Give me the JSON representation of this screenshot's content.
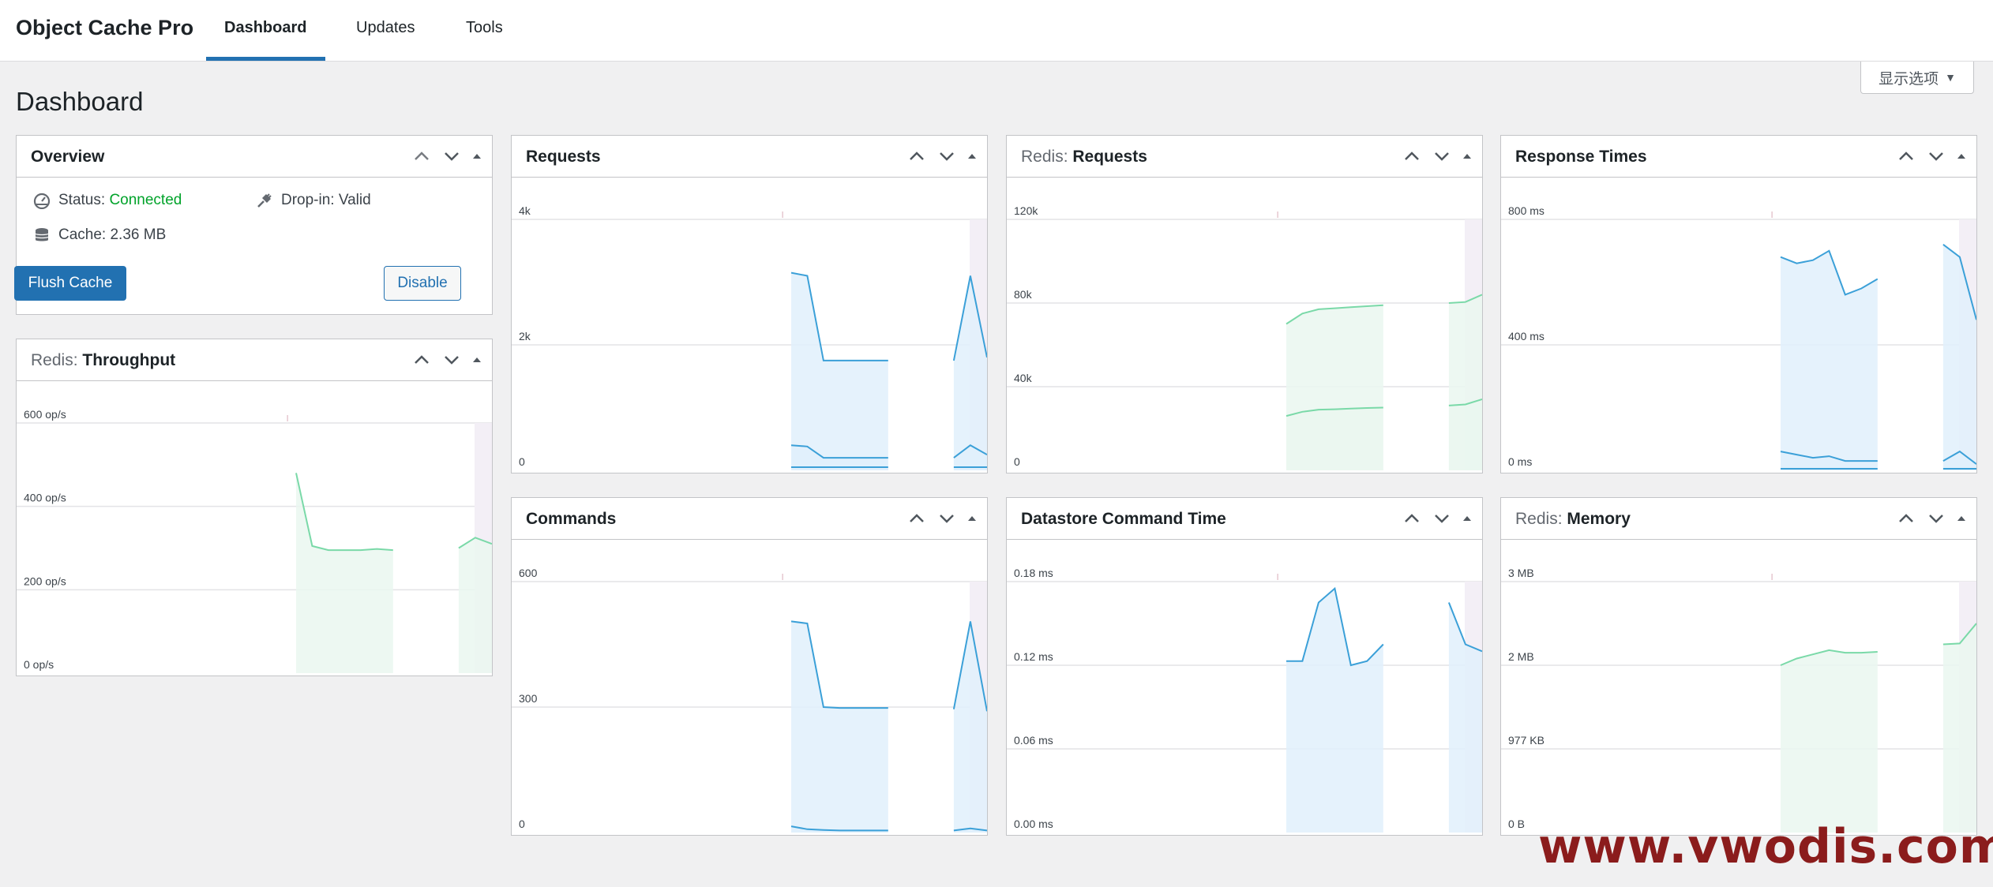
{
  "app": {
    "brand": "Object Cache Pro",
    "tabs": [
      {
        "label": "Dashboard",
        "active": true
      },
      {
        "label": "Updates",
        "active": false
      },
      {
        "label": "Tools",
        "active": false
      }
    ],
    "screen_options_label": "显示选项",
    "page_title": "Dashboard"
  },
  "overview": {
    "title": "Overview",
    "status_label": "Status:",
    "status_value": "Connected",
    "dropin_label": "Drop-in: Valid",
    "cache_label": "Cache: 2.36 MB",
    "flush_label": "Flush Cache",
    "disable_label": "Disable"
  },
  "colors": {
    "accent": "#2271b1",
    "connected": "#00a32a",
    "blue_line": "#3ba0d8",
    "blue_fill": "#e0f0fb",
    "green_line": "#7ad9a8",
    "green_fill": "#eaf7f0",
    "watermark": "#8b1c1c"
  },
  "icons": [
    "dashboard-icon",
    "plug-icon",
    "database-icon",
    "chevron-up-icon",
    "chevron-down-icon",
    "triangle-up-icon"
  ],
  "panels": [
    {
      "id": "throughput",
      "prefix": "Redis:",
      "title": "Throughput"
    },
    {
      "id": "requests",
      "prefix": "",
      "title": "Requests"
    },
    {
      "id": "redis_requests",
      "prefix": "Redis:",
      "title": "Requests"
    },
    {
      "id": "response_times",
      "prefix": "",
      "title": "Response Times"
    },
    {
      "id": "commands",
      "prefix": "",
      "title": "Commands"
    },
    {
      "id": "datastore_time",
      "prefix": "",
      "title": "Datastore Command Time"
    },
    {
      "id": "redis_memory",
      "prefix": "Redis:",
      "title": "Memory"
    }
  ],
  "watermark": "www.vwodis.com",
  "chart_data": [
    {
      "id": "throughput",
      "type": "area",
      "title": "Redis: Throughput",
      "y_ticks": [
        "600 op/s",
        "400 op/s",
        "200 op/s",
        "0 op/s"
      ],
      "ylim": [
        0,
        600
      ],
      "series": [
        {
          "color": "green",
          "segments": [
            [
              480,
              305,
              295,
              295,
              295,
              298,
              295
            ],
            [
              300,
              325,
              310
            ]
          ]
        }
      ]
    },
    {
      "id": "requests",
      "type": "area",
      "title": "Requests",
      "y_ticks": [
        "4k",
        "2k",
        "0"
      ],
      "ylim": [
        0,
        4000
      ],
      "series": [
        {
          "color": "blue",
          "segments": [
            [
              3150,
              3100,
              1750,
              1750,
              1750,
              1750,
              1750
            ],
            [
              1750,
              3100,
              1800
            ]
          ]
        },
        {
          "color": "blue",
          "segments": [
            [
              400,
              380,
              200,
              200,
              200,
              200,
              200
            ],
            [
              200,
              400,
              250
            ]
          ]
        },
        {
          "color": "blue",
          "segments": [
            [
              50,
              50,
              50,
              50,
              50,
              50,
              50
            ],
            [
              50,
              50,
              50
            ]
          ]
        }
      ]
    },
    {
      "id": "redis_requests",
      "type": "area",
      "title": "Redis: Requests",
      "y_ticks": [
        "120k",
        "80k",
        "40k",
        "0"
      ],
      "ylim": [
        0,
        120000
      ],
      "series": [
        {
          "color": "green",
          "segments": [
            [
              70000,
              75000,
              77000,
              77500,
              78000,
              78500,
              79000
            ],
            [
              80000,
              80500,
              84000
            ]
          ]
        },
        {
          "color": "green",
          "segments": [
            [
              26000,
              28000,
              29000,
              29200,
              29500,
              29800,
              30000
            ],
            [
              31000,
              31500,
              34000
            ]
          ]
        }
      ]
    },
    {
      "id": "response_times",
      "type": "area",
      "title": "Response Times",
      "y_ticks": [
        "800 ms",
        "400 ms",
        "0 ms"
      ],
      "ylim": [
        0,
        800
      ],
      "series": [
        {
          "color": "blue",
          "segments": [
            [
              680,
              660,
              670,
              700,
              560,
              580,
              610
            ],
            [
              720,
              680,
              480
            ]
          ]
        },
        {
          "color": "blue",
          "segments": [
            [
              60,
              50,
              40,
              45,
              30,
              30,
              30
            ],
            [
              30,
              60,
              20
            ]
          ]
        },
        {
          "color": "blue",
          "segments": [
            [
              5,
              5,
              5,
              5,
              5,
              5,
              5
            ],
            [
              5,
              5,
              5
            ]
          ]
        }
      ]
    },
    {
      "id": "commands",
      "type": "area",
      "title": "Commands",
      "y_ticks": [
        "600",
        "300",
        "0"
      ],
      "ylim": [
        0,
        600
      ],
      "series": [
        {
          "color": "blue",
          "segments": [
            [
              505,
              500,
              300,
              298,
              298,
              298,
              298
            ],
            [
              295,
              505,
              290
            ]
          ]
        },
        {
          "color": "blue",
          "segments": [
            [
              15,
              8,
              6,
              5,
              5,
              5,
              5
            ],
            [
              5,
              10,
              5
            ]
          ]
        }
      ]
    },
    {
      "id": "datastore_time",
      "type": "area",
      "title": "Datastore Command Time",
      "y_ticks": [
        "0.18 ms",
        "0.12 ms",
        "0.06 ms",
        "0.00 ms"
      ],
      "ylim": [
        0,
        0.18
      ],
      "series": [
        {
          "color": "blue",
          "segments": [
            [
              0.123,
              0.123,
              0.165,
              0.175,
              0.12,
              0.123,
              0.135
            ],
            [
              0.165,
              0.135,
              0.13
            ]
          ]
        }
      ]
    },
    {
      "id": "redis_memory",
      "type": "area",
      "title": "Redis: Memory",
      "y_ticks": [
        "3 MB",
        "2 MB",
        "977 KB",
        "0 B"
      ],
      "ylim": [
        0,
        3
      ],
      "series": [
        {
          "color": "green",
          "segments": [
            [
              2.0,
              2.08,
              2.13,
              2.18,
              2.15,
              2.15,
              2.16
            ],
            [
              2.25,
              2.26,
              2.5
            ]
          ]
        }
      ]
    }
  ]
}
